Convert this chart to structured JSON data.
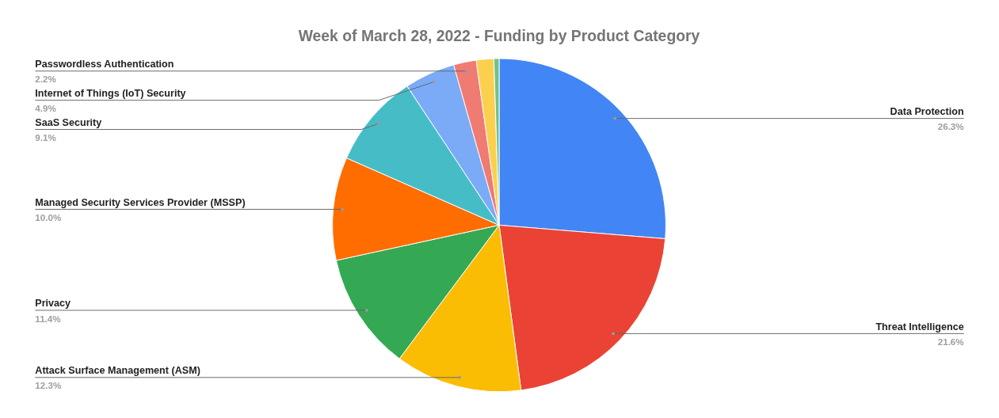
{
  "chart_data": {
    "type": "pie",
    "title": "Week of March 28, 2022 - Funding by Product Category",
    "categories": [
      "Data Protection",
      "Threat Intelligence",
      "Attack Surface Management (ASM)",
      "Privacy",
      "Managed Security Services Provider (MSSP)",
      "SaaS Security",
      "Internet of Things (IoT) Security",
      "Passwordless Authentication",
      null,
      null
    ],
    "values": [
      26.3,
      21.6,
      12.3,
      11.4,
      10.0,
      9.1,
      4.9,
      2.2,
      1.7,
      0.5
    ],
    "colors": [
      "#4285f4",
      "#ea4335",
      "#fbbc04",
      "#34a853",
      "#ff6d01",
      "#46bdc6",
      "#7baaf7",
      "#f07b72",
      "#fcd04f",
      "#71c287"
    ],
    "value_labels": [
      "26.3%",
      "21.6%",
      "12.3%",
      "11.4%",
      "10.0%",
      "9.1%",
      "4.9%",
      "2.2%",
      null,
      null
    ]
  }
}
